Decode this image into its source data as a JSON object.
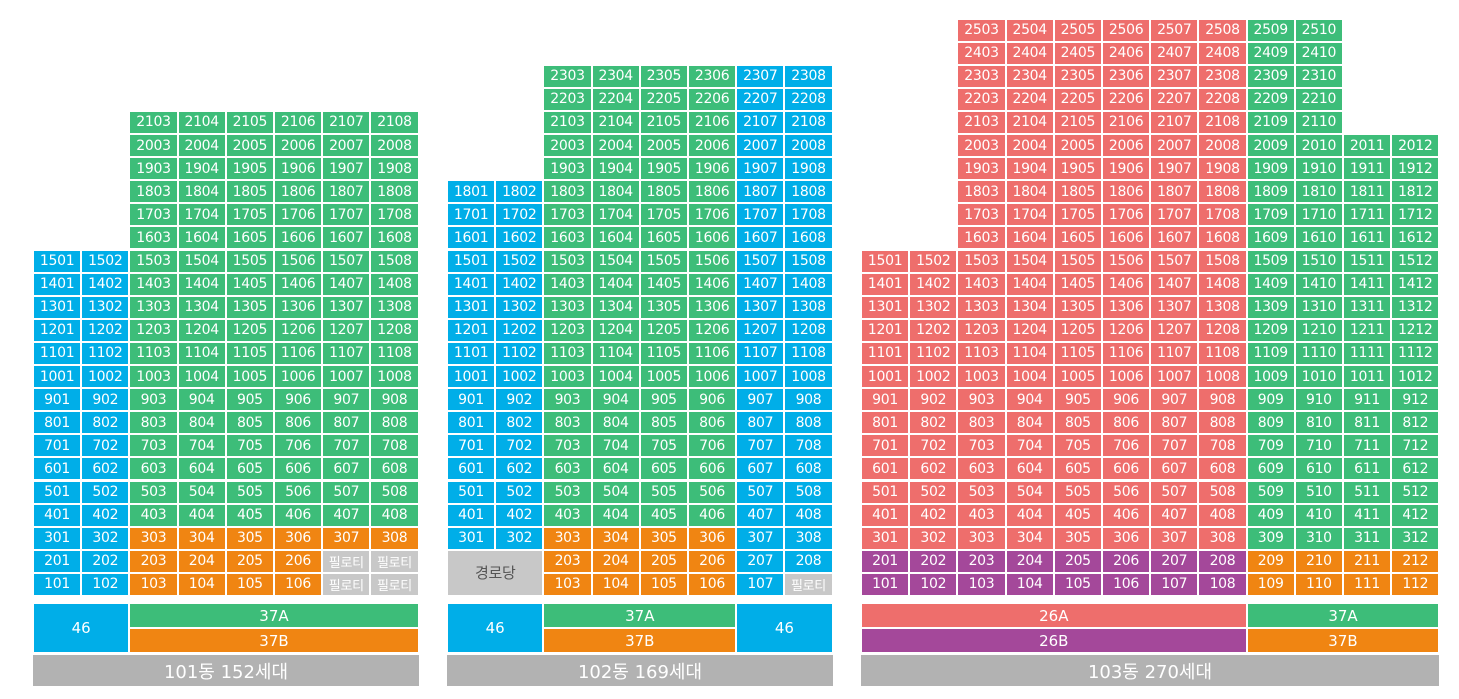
{
  "colors": {
    "46": "#00aee8",
    "37A": "#3dbd79",
    "37B": "#f08512",
    "26A": "#ee6e6c",
    "26B": "#a4489a",
    "special": "#c8c8c8",
    "caption": "#b2b2b2"
  },
  "buildings": [
    {
      "caption": "101동 152세대",
      "top_floor": 21,
      "columns": [
        {
          "line": "01",
          "floors": [
            1,
            15
          ]
        },
        {
          "line": "02",
          "floors": [
            1,
            15
          ]
        },
        {
          "line": "03",
          "floors": [
            1,
            21
          ]
        },
        {
          "line": "04",
          "floors": [
            1,
            21
          ]
        },
        {
          "line": "05",
          "floors": [
            1,
            21
          ]
        },
        {
          "line": "06",
          "floors": [
            1,
            21
          ]
        },
        {
          "line": "07",
          "floors": [
            1,
            21
          ]
        },
        {
          "line": "08",
          "floors": [
            1,
            21
          ]
        }
      ],
      "color_rules": [
        {
          "cols": [
            0,
            1
          ],
          "floors": [
            1,
            99
          ],
          "type": "46"
        },
        {
          "cols": [
            2,
            3,
            4,
            5,
            6,
            7
          ],
          "floors": [
            4,
            99
          ],
          "type": "37A"
        },
        {
          "cols": [
            2,
            3,
            4,
            5,
            6,
            7
          ],
          "floors": [
            1,
            3
          ],
          "type": "37B"
        }
      ],
      "special_cells": [
        {
          "col": 6,
          "floor": 2,
          "label": "필로티"
        },
        {
          "col": 7,
          "floor": 2,
          "label": "필로티"
        },
        {
          "col": 6,
          "floor": 1,
          "label": "필로티"
        },
        {
          "col": 7,
          "floor": 1,
          "label": "필로티"
        }
      ],
      "merged_cells": [],
      "legend": [
        {
          "label": "46",
          "type": "46",
          "cols": [
            0,
            2
          ],
          "rows": [
            0,
            2
          ]
        },
        {
          "label": "37A",
          "type": "37A",
          "cols": [
            2,
            8
          ],
          "rows": [
            0,
            1
          ]
        },
        {
          "label": "37B",
          "type": "37B",
          "cols": [
            2,
            8
          ],
          "rows": [
            1,
            2
          ]
        }
      ]
    },
    {
      "caption": "102동 169세대",
      "top_floor": 23,
      "columns": [
        {
          "line": "01",
          "floors": [
            3,
            18
          ]
        },
        {
          "line": "02",
          "floors": [
            3,
            18
          ]
        },
        {
          "line": "03",
          "floors": [
            1,
            23
          ]
        },
        {
          "line": "04",
          "floors": [
            1,
            23
          ]
        },
        {
          "line": "05",
          "floors": [
            1,
            23
          ]
        },
        {
          "line": "06",
          "floors": [
            1,
            23
          ]
        },
        {
          "line": "07",
          "floors": [
            1,
            23
          ]
        },
        {
          "line": "08",
          "floors": [
            1,
            23
          ]
        }
      ],
      "color_rules": [
        {
          "cols": [
            0,
            1,
            6,
            7
          ],
          "floors": [
            1,
            99
          ],
          "type": "46"
        },
        {
          "cols": [
            2,
            3,
            4,
            5
          ],
          "floors": [
            4,
            99
          ],
          "type": "37A"
        },
        {
          "cols": [
            2,
            3,
            4,
            5
          ],
          "floors": [
            1,
            3
          ],
          "type": "37B"
        }
      ],
      "special_cells": [
        {
          "col": 7,
          "floor": 1,
          "label": "필로티"
        }
      ],
      "merged_cells": [
        {
          "cols": [
            0,
            2
          ],
          "floors": [
            1,
            2
          ],
          "label": "경로당"
        }
      ],
      "legend": [
        {
          "label": "46",
          "type": "46",
          "cols": [
            0,
            2
          ],
          "rows": [
            0,
            2
          ]
        },
        {
          "label": "37A",
          "type": "37A",
          "cols": [
            2,
            6
          ],
          "rows": [
            0,
            1
          ]
        },
        {
          "label": "37B",
          "type": "37B",
          "cols": [
            2,
            6
          ],
          "rows": [
            1,
            2
          ]
        },
        {
          "label": "46",
          "type": "46",
          "cols": [
            6,
            8
          ],
          "rows": [
            0,
            2
          ]
        }
      ]
    },
    {
      "caption": "103동 270세대",
      "top_floor": 25,
      "columns": [
        {
          "line": "01",
          "floors": [
            1,
            15
          ]
        },
        {
          "line": "02",
          "floors": [
            1,
            15
          ]
        },
        {
          "line": "03",
          "floors": [
            1,
            25
          ]
        },
        {
          "line": "04",
          "floors": [
            1,
            25
          ]
        },
        {
          "line": "05",
          "floors": [
            1,
            25
          ]
        },
        {
          "line": "06",
          "floors": [
            1,
            25
          ]
        },
        {
          "line": "07",
          "floors": [
            1,
            25
          ]
        },
        {
          "line": "08",
          "floors": [
            1,
            25
          ]
        },
        {
          "line": "09",
          "floors": [
            1,
            25
          ]
        },
        {
          "line": "10",
          "floors": [
            1,
            25
          ]
        },
        {
          "line": "11",
          "floors": [
            1,
            20
          ]
        },
        {
          "line": "12",
          "floors": [
            1,
            20
          ]
        }
      ],
      "color_rules": [
        {
          "cols": [
            0,
            1,
            2,
            3,
            4,
            5,
            6,
            7
          ],
          "floors": [
            3,
            99
          ],
          "type": "26A"
        },
        {
          "cols": [
            0,
            1,
            2,
            3,
            4,
            5,
            6,
            7
          ],
          "floors": [
            1,
            2
          ],
          "type": "26B"
        },
        {
          "cols": [
            8,
            9,
            10,
            11
          ],
          "floors": [
            3,
            99
          ],
          "type": "37A"
        },
        {
          "cols": [
            8,
            9,
            10,
            11
          ],
          "floors": [
            1,
            2
          ],
          "type": "37B"
        }
      ],
      "special_cells": [],
      "merged_cells": [],
      "legend": [
        {
          "label": "26A",
          "type": "26A",
          "cols": [
            0,
            8
          ],
          "rows": [
            0,
            1
          ]
        },
        {
          "label": "26B",
          "type": "26B",
          "cols": [
            0,
            8
          ],
          "rows": [
            1,
            2
          ]
        },
        {
          "label": "37A",
          "type": "37A",
          "cols": [
            8,
            12
          ],
          "rows": [
            0,
            1
          ]
        },
        {
          "label": "37B",
          "type": "37B",
          "cols": [
            8,
            12
          ],
          "rows": [
            1,
            2
          ]
        }
      ]
    }
  ]
}
